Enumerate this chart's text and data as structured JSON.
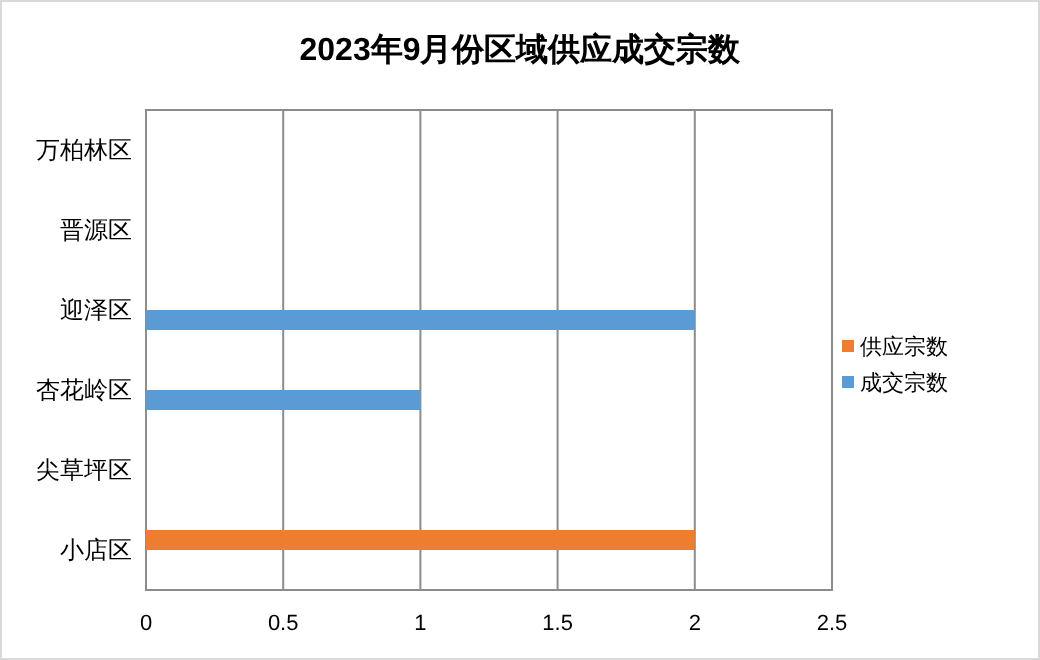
{
  "chart_data": {
    "type": "bar",
    "orientation": "horizontal",
    "title": "2023年9月份区域供应成交宗数",
    "categories": [
      "万柏林区",
      "晋源区",
      "迎泽区",
      "杏花岭区",
      "尖草坪区",
      "小店区"
    ],
    "series": [
      {
        "name": "供应宗数",
        "color": "#ed7d31",
        "values": [
          0,
          0,
          0,
          0,
          0,
          2
        ]
      },
      {
        "name": "成交宗数",
        "color": "#5b9bd5",
        "values": [
          0,
          0,
          2,
          1,
          0,
          0
        ]
      }
    ],
    "xlim": [
      0,
      2.5
    ],
    "xticks": [
      0,
      0.5,
      1,
      1.5,
      2,
      2.5
    ],
    "grid": "x",
    "legend": "right"
  }
}
